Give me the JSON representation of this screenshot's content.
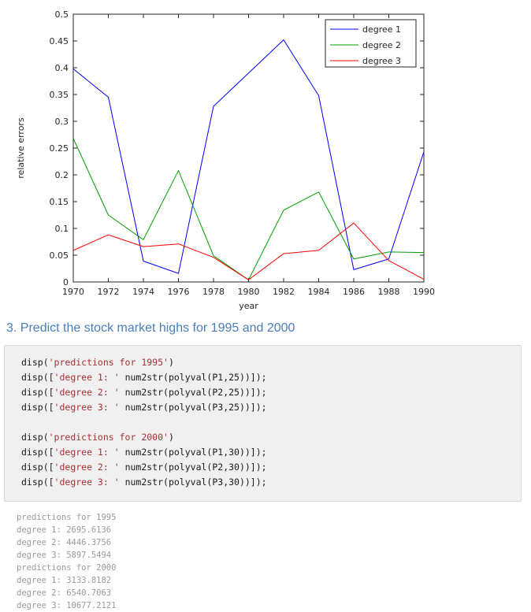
{
  "chart_data": {
    "type": "line",
    "title": "",
    "xlabel": "year",
    "ylabel": "relative errors",
    "xlim": [
      1970,
      1990
    ],
    "ylim": [
      0,
      0.5
    ],
    "grid": false,
    "axis_color": "#262626",
    "x_ticks": [
      1970,
      1972,
      1974,
      1976,
      1978,
      1980,
      1982,
      1984,
      1986,
      1988,
      1990
    ],
    "y_ticks": [
      0,
      0.05,
      0.1,
      0.15,
      0.2,
      0.25,
      0.3,
      0.35,
      0.4,
      0.45,
      0.5
    ],
    "y_tick_labels": [
      "0",
      "0.05",
      "0.1",
      "0.15",
      "0.2",
      "0.25",
      "0.3",
      "0.35",
      "0.4",
      "0.45",
      "0.5"
    ],
    "x": [
      1970,
      1972,
      1974,
      1976,
      1978,
      1980,
      1982,
      1984,
      1986,
      1988,
      1990
    ],
    "series": [
      {
        "name": "degree 1",
        "color": "#0000ff",
        "values": [
          0.398,
          0.345,
          0.039,
          0.016,
          0.328,
          0.39,
          0.452,
          0.348,
          0.023,
          0.043,
          0.243
        ]
      },
      {
        "name": "degree 2",
        "color": "#00a000",
        "values": [
          0.268,
          0.125,
          0.079,
          0.208,
          0.049,
          0.004,
          0.134,
          0.168,
          0.043,
          0.056,
          0.055
        ]
      },
      {
        "name": "degree 3",
        "color": "#ff0000",
        "values": [
          0.059,
          0.088,
          0.066,
          0.071,
          0.046,
          0.004,
          0.053,
          0.059,
          0.11,
          0.04,
          0.005
        ]
      }
    ],
    "legend": {
      "position": "top-right",
      "border_color": "#262626",
      "entries": [
        "degree 1",
        "degree 2",
        "degree 3"
      ]
    }
  },
  "section": {
    "heading": "3. Predict the stock market highs for 1995 and 2000",
    "heading_color": "#4a7ebb"
  },
  "code_block": {
    "bg": "#f0f0f0",
    "border": "#d9d9d9",
    "text_color": "#1a1a1a",
    "string_color": "#a33333",
    "lines": [
      [
        {
          "kind": "plain",
          "text": "disp("
        },
        {
          "kind": "string",
          "text": "'predictions for 1995'"
        },
        {
          "kind": "plain",
          "text": ")"
        }
      ],
      [
        {
          "kind": "plain",
          "text": "disp(["
        },
        {
          "kind": "string",
          "text": "'degree 1: '"
        },
        {
          "kind": "plain",
          "text": " num2str(polyval(P1,25))]);"
        }
      ],
      [
        {
          "kind": "plain",
          "text": "disp(["
        },
        {
          "kind": "string",
          "text": "'degree 2: '"
        },
        {
          "kind": "plain",
          "text": " num2str(polyval(P2,25))]);"
        }
      ],
      [
        {
          "kind": "plain",
          "text": "disp(["
        },
        {
          "kind": "string",
          "text": "'degree 3: '"
        },
        {
          "kind": "plain",
          "text": " num2str(polyval(P3,25))]);"
        }
      ],
      [],
      [
        {
          "kind": "plain",
          "text": "disp("
        },
        {
          "kind": "string",
          "text": "'predictions for 2000'"
        },
        {
          "kind": "plain",
          "text": ")"
        }
      ],
      [
        {
          "kind": "plain",
          "text": "disp(["
        },
        {
          "kind": "string",
          "text": "'degree 1: '"
        },
        {
          "kind": "plain",
          "text": " num2str(polyval(P1,30))]);"
        }
      ],
      [
        {
          "kind": "plain",
          "text": "disp(["
        },
        {
          "kind": "string",
          "text": "'degree 2: '"
        },
        {
          "kind": "plain",
          "text": " num2str(polyval(P2,30))]);"
        }
      ],
      [
        {
          "kind": "plain",
          "text": "disp(["
        },
        {
          "kind": "string",
          "text": "'degree 3: '"
        },
        {
          "kind": "plain",
          "text": " num2str(polyval(P3,30))]);"
        }
      ]
    ]
  },
  "output_block": {
    "text_color": "#9a9a9a",
    "lines": [
      "predictions for 1995",
      "degree 1: 2695.6136",
      "degree 2: 4446.3756",
      "degree 3: 5897.5494",
      "predictions for 2000",
      "degree 1: 3133.8182",
      "degree 2: 6540.7063",
      "degree 3: 10677.2121"
    ]
  }
}
